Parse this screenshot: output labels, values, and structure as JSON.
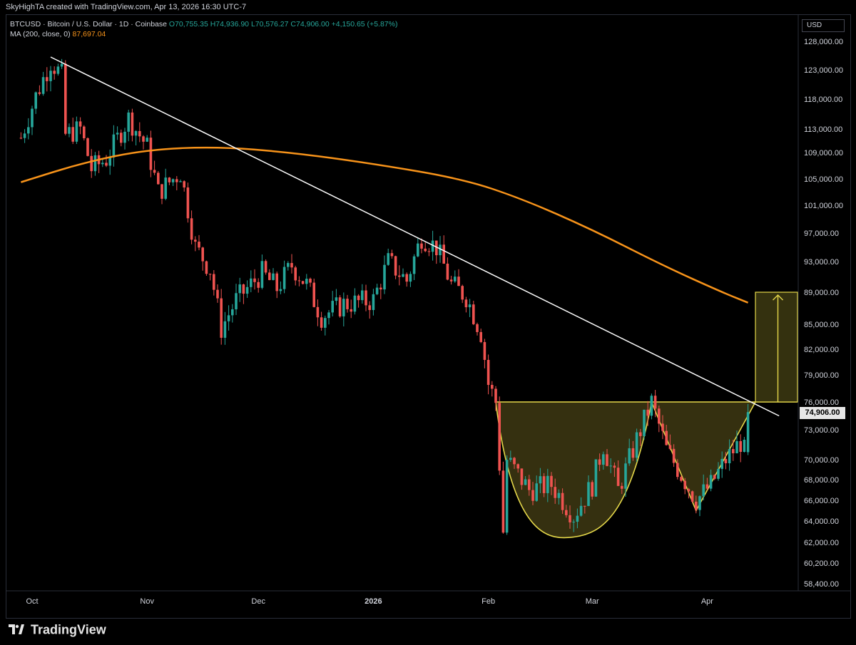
{
  "header": {
    "caption": "SkyHighTA created with TradingView.com, Apr 13, 2026 16:30 UTC-7",
    "symbol_line": "BTCUSD · Bitcoin / U.S. Dollar · 1D · Coinbase",
    "open": "O70,755.35",
    "high": "H74,936.90",
    "low": "L70,576.27",
    "close": "C74,906.00",
    "change": "+4,150.65 (+5.87%)",
    "ma_label": "MA (200, close, 0)",
    "ma_value": "87,697.04"
  },
  "price_axis": {
    "currency": "USD",
    "last_price": "74,906.00"
  },
  "footer": {
    "brand": "TradingView"
  },
  "colors": {
    "background": "#000000",
    "up": "#26a69a",
    "down": "#ef5350",
    "ma": "#f7931a",
    "trendline": "#ffffff",
    "pattern": "#e5d84a",
    "pattern_fill": "#3b3512"
  },
  "chart_data": {
    "type": "candlestick",
    "title": "BTCUSD · Bitcoin / U.S. Dollar · 1D · Coinbase",
    "y_ticks": [
      128000,
      123000,
      118000,
      113000,
      109000,
      105000,
      101000,
      97000,
      93000,
      89000,
      85000,
      82000,
      79000,
      76000,
      73000,
      70000,
      68000,
      66000,
      64000,
      62000,
      60200,
      58400
    ],
    "x_ticks": [
      "Oct",
      "Nov",
      "Dec",
      "2026",
      "Feb",
      "Mar",
      "Apr"
    ],
    "price_path": [
      [
        "2025-09-28",
        111500
      ],
      [
        "2025-10-02",
        118500
      ],
      [
        "2025-10-06",
        124500
      ],
      [
        "2025-10-09",
        122000
      ],
      [
        "2025-10-10",
        112000
      ],
      [
        "2025-10-14",
        113000
      ],
      [
        "2025-10-17",
        106500
      ],
      [
        "2025-10-21",
        108000
      ],
      [
        "2025-10-27",
        114800
      ],
      [
        "2025-11-01",
        110000
      ],
      [
        "2025-11-04",
        103000
      ],
      [
        "2025-11-10",
        106000
      ],
      [
        "2025-11-14",
        95000
      ],
      [
        "2025-11-18",
        92000
      ],
      [
        "2025-11-21",
        84500
      ],
      [
        "2025-11-25",
        88000
      ],
      [
        "2025-12-02",
        91500
      ],
      [
        "2025-12-06",
        89500
      ],
      [
        "2025-12-10",
        92500
      ],
      [
        "2025-12-14",
        90000
      ],
      [
        "2025-12-18",
        86000
      ],
      [
        "2025-12-24",
        87500
      ],
      [
        "2026-01-01",
        88000
      ],
      [
        "2026-01-05",
        93000
      ],
      [
        "2026-01-10",
        90500
      ],
      [
        "2026-01-14",
        96500
      ],
      [
        "2026-01-18",
        95000
      ],
      [
        "2026-01-22",
        90000
      ],
      [
        "2026-01-26",
        88500
      ],
      [
        "2026-01-30",
        84000
      ],
      [
        "2026-02-01",
        78000
      ],
      [
        "2026-02-03",
        76000
      ],
      [
        "2026-02-05",
        63000
      ],
      [
        "2026-02-06",
        70000
      ],
      [
        "2026-02-12",
        67000
      ],
      [
        "2026-02-18",
        67500
      ],
      [
        "2026-02-24",
        64500
      ],
      [
        "2026-03-01",
        67500
      ],
      [
        "2026-03-04",
        71500
      ],
      [
        "2026-03-08",
        67000
      ],
      [
        "2026-03-14",
        73000
      ],
      [
        "2026-03-17",
        76000
      ],
      [
        "2026-03-21",
        71000
      ],
      [
        "2026-03-25",
        68500
      ],
      [
        "2026-03-29",
        66000
      ],
      [
        "2026-04-02",
        67500
      ],
      [
        "2026-04-06",
        70000
      ],
      [
        "2026-04-10",
        71800
      ],
      [
        "2026-04-11",
        70800
      ],
      [
        "2026-04-12",
        74906
      ]
    ],
    "series": [
      {
        "name": "MA (200, close, 0)",
        "values": [
          [
            "2025-09-28",
            104500
          ],
          [
            "2025-10-15",
            107500
          ],
          [
            "2025-11-01",
            109500
          ],
          [
            "2025-11-20",
            110000
          ],
          [
            "2025-12-10",
            109000
          ],
          [
            "2026-01-01",
            107300
          ],
          [
            "2026-01-25",
            105000
          ],
          [
            "2026-02-10",
            102000
          ],
          [
            "2026-03-01",
            97500
          ],
          [
            "2026-03-20",
            92500
          ],
          [
            "2026-04-05",
            89000
          ],
          [
            "2026-04-12",
            87697
          ]
        ]
      }
    ],
    "annotations": {
      "trendline": [
        [
          "2025-10-06",
          124500
        ],
        [
          "2026-04-20",
          74500
        ]
      ],
      "neckline": 76000,
      "target": 89000,
      "cup_low": 62500,
      "handle_low": 65000
    }
  }
}
